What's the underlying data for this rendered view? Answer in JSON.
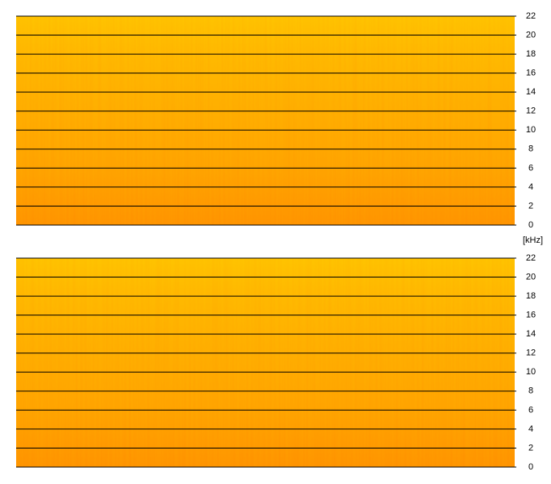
{
  "unit_label": "[kHz]",
  "chart_data": [
    {
      "type": "spectrogram",
      "ylim": [
        0,
        22
      ],
      "yticks": [
        0,
        2,
        4,
        6,
        8,
        10,
        12,
        14,
        16,
        18,
        20,
        22
      ],
      "grid": true
    },
    {
      "type": "spectrogram",
      "ylim": [
        0,
        22
      ],
      "yticks": [
        0,
        2,
        4,
        6,
        8,
        10,
        12,
        14,
        16,
        18,
        20,
        22
      ],
      "grid": true
    }
  ]
}
